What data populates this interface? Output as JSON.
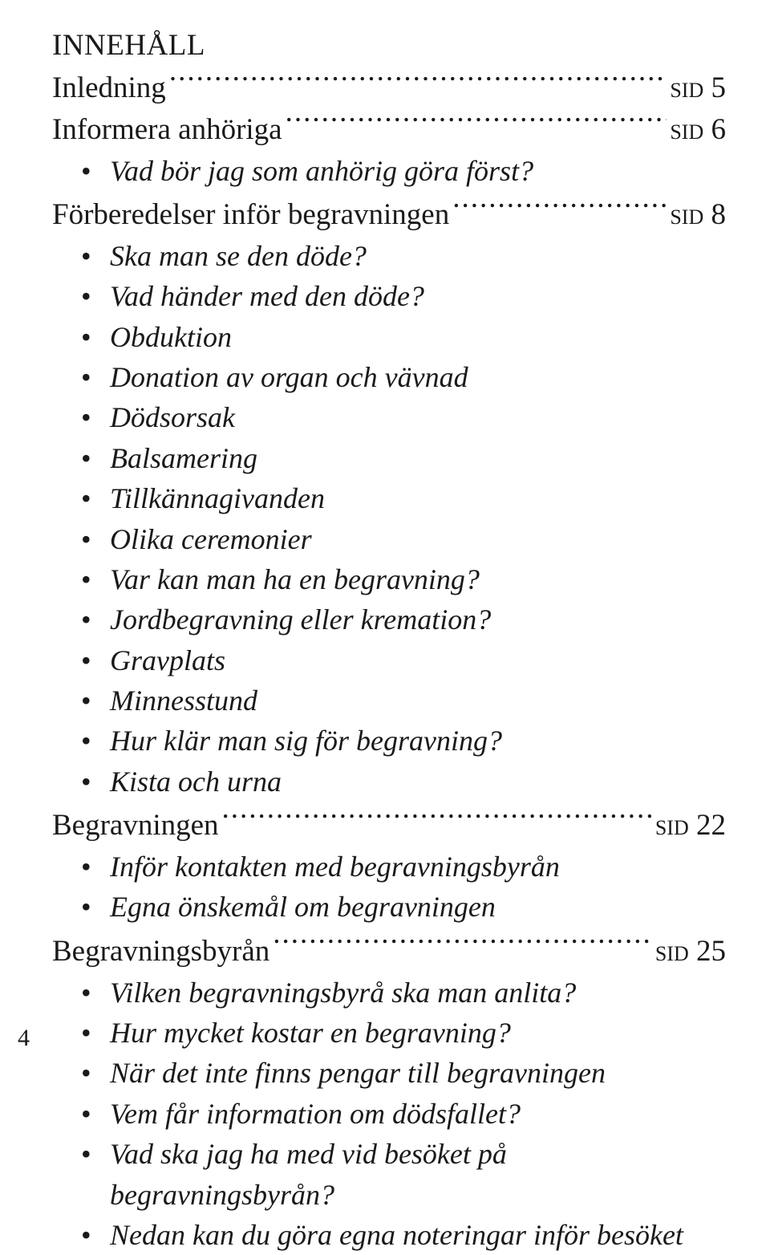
{
  "title": "INNEHÅLL",
  "sid_label": "sid",
  "sections": [
    {
      "label": "Inledning",
      "page": "5",
      "bullets": []
    },
    {
      "label": "Informera anhöriga",
      "page": "6",
      "bullets": [
        "Vad bör jag som anhörig göra först?"
      ]
    },
    {
      "label": "Förberedelser inför begravningen",
      "page": "8",
      "bullets": [
        "Ska man se den döde?",
        "Vad händer med den döde?",
        "Obduktion",
        "Donation av organ och vävnad",
        "Dödsorsak",
        "Balsamering",
        "Tillkännagivanden",
        "Olika ceremonier",
        "Var kan man ha en begravning?",
        "Jordbegravning eller kremation?",
        "Gravplats",
        "Minnesstund",
        "Hur klär man sig för begravning?",
        "Kista och urna"
      ]
    },
    {
      "label": "Begravningen",
      "page": "22",
      "bullets": [
        "Inför kontakten med begravningsbyrån",
        "Egna önskemål om begravningen"
      ]
    },
    {
      "label": "Begravningsbyrån",
      "page": "25",
      "bullets": [
        "Vilken begravningsbyrå ska man anlita?",
        "Hur mycket kostar en begravning?",
        "När det inte finns pengar till begravningen",
        "Vem får information om dödsfallet?",
        "Vad ska jag ha med vid besöket på begravningsbyrån?",
        "Nedan kan du göra egna noteringar inför besöket"
      ]
    }
  ],
  "page_number": "4",
  "colors": {
    "text": "#1a1a1a",
    "background": "#ffffff"
  }
}
